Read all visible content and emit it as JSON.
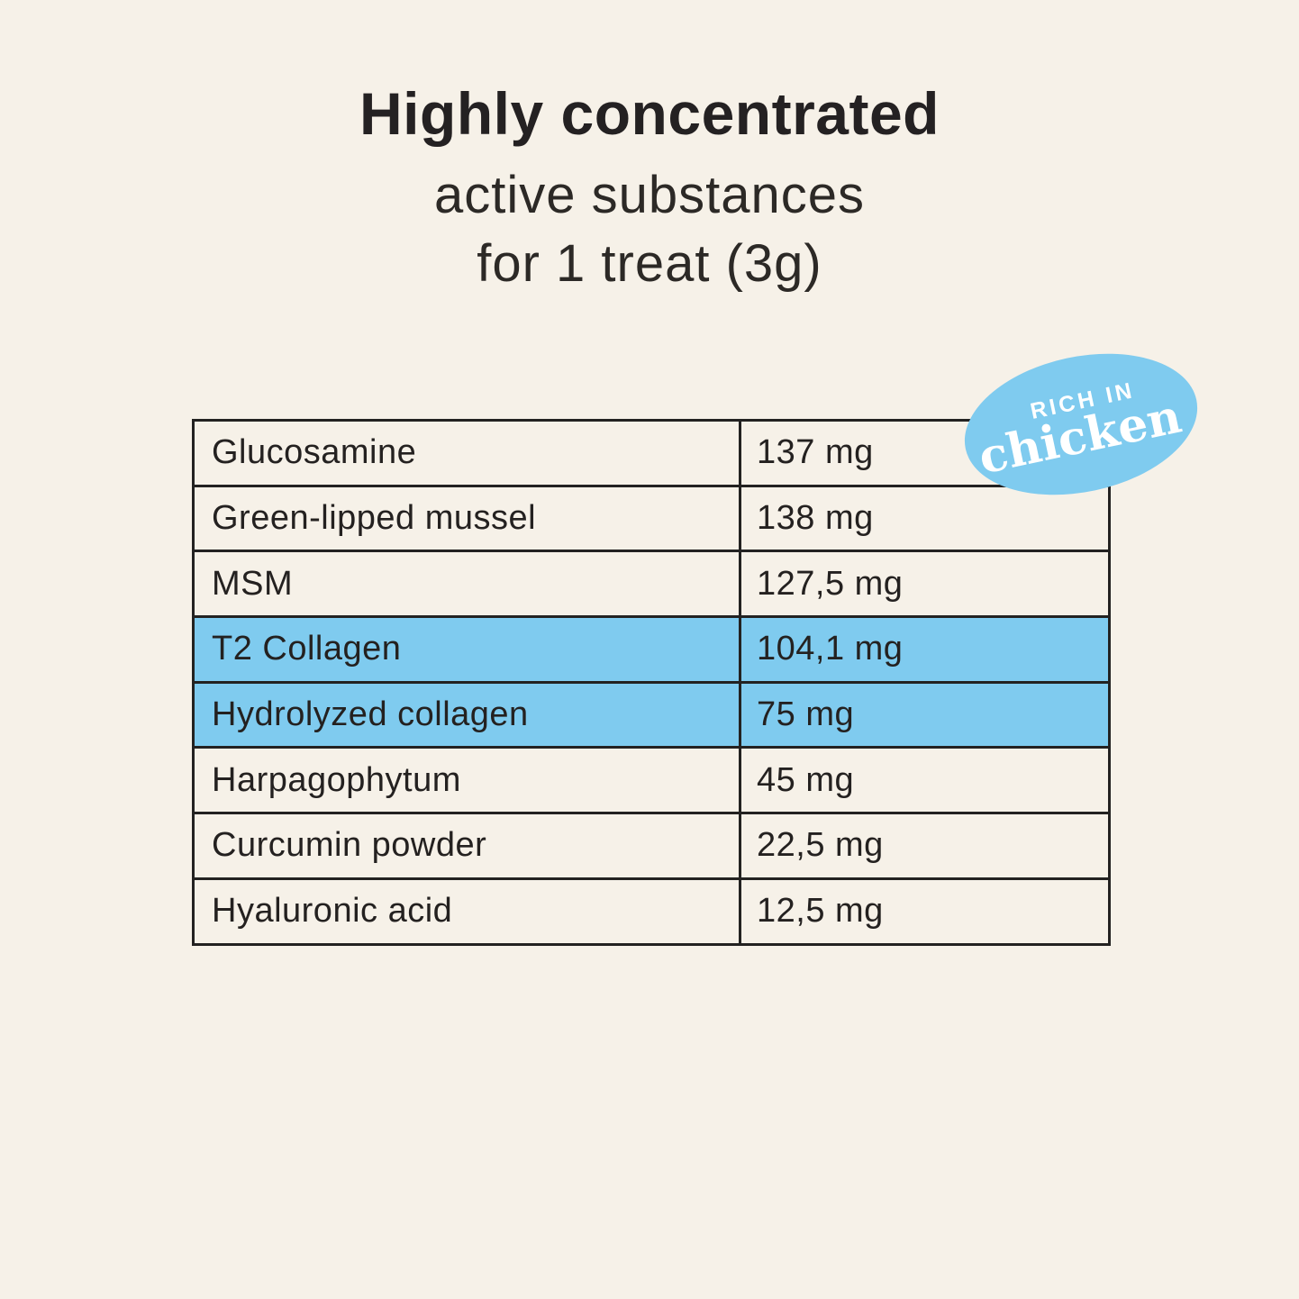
{
  "page": {
    "background_color": "#F6F1E8",
    "title_bold": "Highly concentrated",
    "subtitle_line1": "active substances",
    "subtitle_line2": "for 1 treat (3g)"
  },
  "badge": {
    "line1": "RICH IN",
    "line2": "chicken",
    "fill_color": "#7FCBEF",
    "text_color": "#FFFFFF"
  },
  "table": {
    "border_color": "#232221",
    "highlight_color": "#7FCBEF",
    "rows": [
      {
        "label": "Glucosamine",
        "value": "137 mg",
        "highlighted": false
      },
      {
        "label": "Green-lipped mussel",
        "value": "138 mg",
        "highlighted": false
      },
      {
        "label": "MSM",
        "value": "127,5 mg",
        "highlighted": false
      },
      {
        "label": "T2 Collagen",
        "value": "104,1 mg",
        "highlighted": true
      },
      {
        "label": "Hydrolyzed collagen",
        "value": "75 mg",
        "highlighted": true
      },
      {
        "label": "Harpagophytum",
        "value": "45 mg",
        "highlighted": false
      },
      {
        "label": "Curcumin powder",
        "value": "22,5 mg",
        "highlighted": false
      },
      {
        "label": "Hyaluronic acid",
        "value": "12,5 mg",
        "highlighted": false
      }
    ]
  },
  "chart_data": {
    "type": "table",
    "title": "Highly concentrated active substances for 1 treat (3g)",
    "categories": [
      "Glucosamine",
      "Green-lipped mussel",
      "MSM",
      "T2 Collagen",
      "Hydrolyzed collagen",
      "Harpagophytum",
      "Curcumin powder",
      "Hyaluronic acid"
    ],
    "values_mg": [
      137,
      138,
      127.5,
      104.1,
      75,
      45,
      22.5,
      12.5
    ],
    "value_labels": [
      "137 mg",
      "138 mg",
      "127,5 mg",
      "104,1 mg",
      "75 mg",
      "45 mg",
      "22,5 mg",
      "12,5 mg"
    ],
    "highlighted_rows": [
      "T2 Collagen",
      "Hydrolyzed collagen"
    ],
    "annotation_badge": "RICH IN chicken"
  }
}
